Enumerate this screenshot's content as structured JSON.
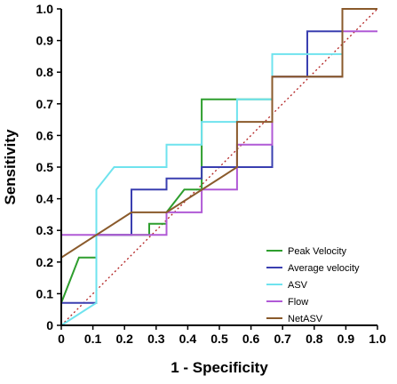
{
  "chart_data": {
    "type": "line",
    "title": "",
    "xlabel": "1 - Specificity",
    "ylabel": "Sensitivity",
    "xlim": [
      0,
      1
    ],
    "ylim": [
      0,
      1
    ],
    "x_ticks": [
      "0",
      "0.1",
      "0.2",
      "0.3",
      "0.4",
      "0.5",
      "0.6",
      "0.7",
      "0.8",
      "0.9",
      "1.0"
    ],
    "y_ticks": [
      "0",
      "0.1",
      "0.2",
      "0.3",
      "0.4",
      "0.5",
      "0.6",
      "0.7",
      "0.8",
      "0.9",
      "1.0"
    ],
    "grid": false,
    "legend_position": "bottom-right",
    "reference_line": {
      "style": "dotted",
      "color": "#b22222",
      "x": [
        0,
        1
      ],
      "y": [
        0,
        1
      ]
    },
    "series": [
      {
        "name": "Peak Velocity",
        "color": "#2e9e2e",
        "x": [
          0,
          0,
          0.056,
          0.111,
          0.111,
          0.278,
          0.278,
          0.333,
          0.333,
          0.389,
          0.389,
          0.444,
          0.444,
          0.556,
          0.556,
          0.667,
          0.667,
          0.778,
          0.778,
          0.889,
          0.889,
          1.0
        ],
        "y": [
          0,
          0.071,
          0.214,
          0.214,
          0.286,
          0.286,
          0.321,
          0.321,
          0.357,
          0.429,
          0.429,
          0.429,
          0.714,
          0.714,
          0.714,
          0.714,
          0.786,
          0.786,
          0.786,
          0.786,
          1.0,
          1.0
        ]
      },
      {
        "name": "Average velocity",
        "color": "#3a3fb0",
        "x": [
          0,
          0,
          0.111,
          0.111,
          0.222,
          0.222,
          0.333,
          0.333,
          0.444,
          0.444,
          0.556,
          0.556,
          0.667,
          0.667,
          0.778,
          0.778,
          0.889,
          0.889,
          1.0
        ],
        "y": [
          0,
          0.071,
          0.071,
          0.286,
          0.286,
          0.429,
          0.429,
          0.464,
          0.464,
          0.5,
          0.5,
          0.5,
          0.5,
          0.786,
          0.786,
          0.929,
          0.929,
          1.0,
          1.0
        ]
      },
      {
        "name": "ASV",
        "color": "#6fe3ee",
        "x": [
          0,
          0.111,
          0.111,
          0.167,
          0.333,
          0.333,
          0.444,
          0.444,
          0.556,
          0.556,
          0.667,
          0.667,
          0.889,
          0.889,
          1.0
        ],
        "y": [
          0,
          0.071,
          0.429,
          0.5,
          0.5,
          0.571,
          0.571,
          0.643,
          0.643,
          0.714,
          0.714,
          0.857,
          0.857,
          1.0,
          1.0
        ]
      },
      {
        "name": "Flow",
        "color": "#b05ad6",
        "x": [
          0,
          0,
          0.333,
          0.333,
          0.444,
          0.444,
          0.556,
          0.556,
          0.667,
          0.667,
          0.889,
          0.889,
          1.0
        ],
        "y": [
          0,
          0.286,
          0.286,
          0.357,
          0.357,
          0.429,
          0.429,
          0.571,
          0.571,
          0.786,
          0.786,
          0.929,
          0.929
        ]
      },
      {
        "name": "NetASV",
        "color": "#8a5a2b",
        "x": [
          0,
          0,
          0.222,
          0.333,
          0.556,
          0.556,
          0.667,
          0.667,
          0.889,
          0.889,
          1.0
        ],
        "y": [
          0,
          0.214,
          0.357,
          0.357,
          0.5,
          0.643,
          0.643,
          0.786,
          0.786,
          1.0,
          1.0
        ]
      }
    ]
  }
}
